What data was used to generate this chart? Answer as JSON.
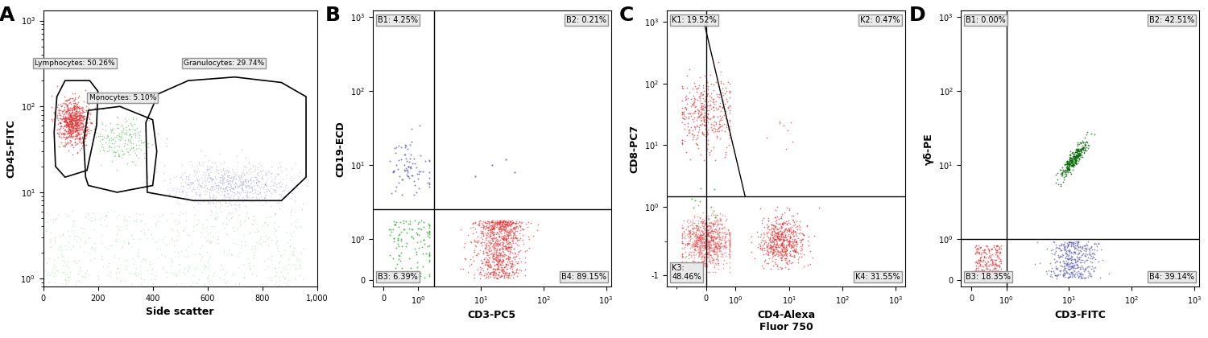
{
  "panel_A": {
    "label": "A",
    "xlabel": "Side scatter",
    "ylabel": "CD45-FITC",
    "gate_lymph_label": "Lymphocytes: 50.26%",
    "gate_mono_label": "Monocytes: 5.10%",
    "gate_gran_label": "Granulocytes: 29.74%"
  },
  "panel_B": {
    "label": "B",
    "xlabel": "CD3-PC5",
    "ylabel": "CD19-ECD",
    "q_B1": "B1: 4.25%",
    "q_B2": "B2: 0.21%",
    "q_B3": "B3: 6.39%",
    "q_B4": "B4: 89.15%"
  },
  "panel_C": {
    "label": "C",
    "xlabel": "CD4-Alexa\nFluor 750",
    "ylabel": "CD8-PC7",
    "q_K1": "K1: 19.52%",
    "q_K2": "K2: 0.47%",
    "q_K3": "K3:\n48.46%",
    "q_K4": "K4: 31.55%"
  },
  "panel_D": {
    "label": "D",
    "xlabel": "CD3-FITC",
    "ylabel": "γδ-PE",
    "q_B1": "B1: 0.00%",
    "q_B2": "B2: 42.51%",
    "q_B3": "B3: 18.35%",
    "q_B4": "B4: 39.14%"
  },
  "col_red": "#e03030",
  "col_blue": "#5555bb",
  "col_green": "#33aa33",
  "col_dark_green": "#006600",
  "col_light_blue": "#8888cc"
}
